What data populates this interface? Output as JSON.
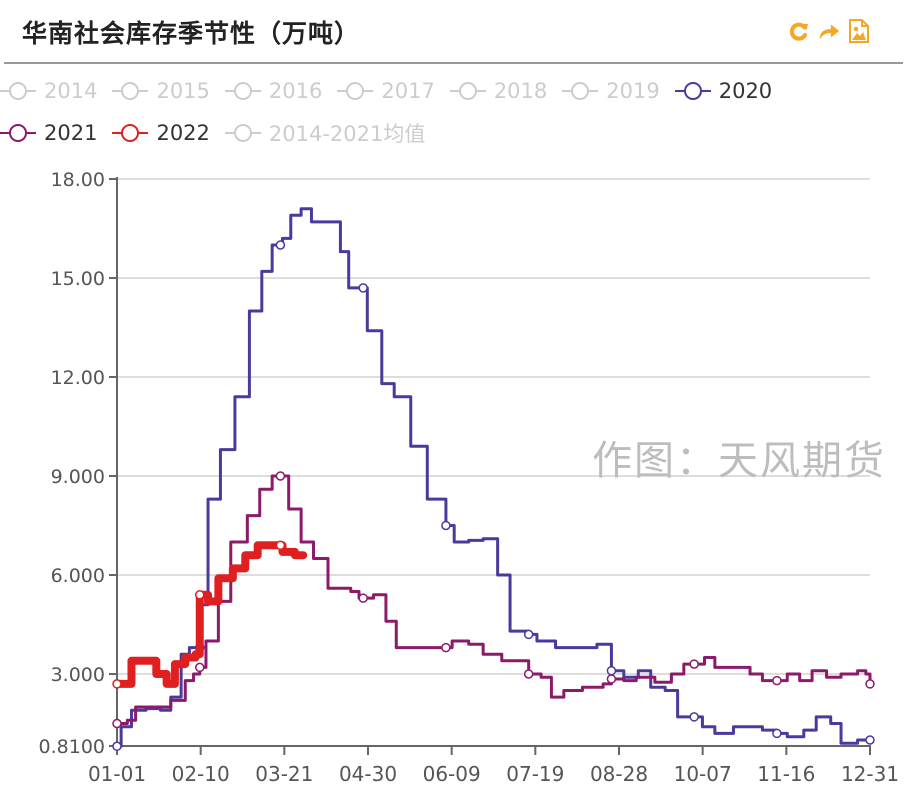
{
  "header": {
    "title": "华南社会库存季节性（万吨）",
    "tools": [
      {
        "name": "refresh-icon",
        "color": "#f5a623"
      },
      {
        "name": "share-icon",
        "color": "#f5a623"
      },
      {
        "name": "save-image-icon",
        "color": "#f5a623"
      }
    ]
  },
  "legend": {
    "rows": [
      [
        {
          "label": "2014",
          "active": false,
          "color": "#cccccc"
        },
        {
          "label": "2015",
          "active": false,
          "color": "#cccccc"
        },
        {
          "label": "2016",
          "active": false,
          "color": "#cccccc"
        },
        {
          "label": "2017",
          "active": false,
          "color": "#cccccc"
        },
        {
          "label": "2018",
          "active": false,
          "color": "#cccccc"
        },
        {
          "label": "2019",
          "active": false,
          "color": "#cccccc"
        },
        {
          "label": "2020",
          "active": true,
          "color": "#4b3a9c"
        }
      ],
      [
        {
          "label": "2021",
          "active": true,
          "color": "#8b1a6b"
        },
        {
          "label": "2022",
          "active": true,
          "color": "#e02020"
        },
        {
          "label": "2014-2021均值",
          "active": false,
          "color": "#cccccc"
        }
      ]
    ]
  },
  "watermark": "作图：天风期货",
  "chart_data": {
    "type": "line",
    "title": "华南社会库存季节性（万吨）",
    "xlabel": "",
    "ylabel": "",
    "ylim": [
      0.81,
      18.0
    ],
    "y_ticks": [
      "0.8100",
      "3.000",
      "6.000",
      "9.000",
      "12.00",
      "15.00",
      "18.00"
    ],
    "y_tick_values": [
      0.81,
      3.0,
      6.0,
      9.0,
      12.0,
      15.0,
      18.0
    ],
    "x_ticks": [
      "01-01",
      "02-10",
      "03-21",
      "04-30",
      "06-09",
      "07-19",
      "08-28",
      "10-07",
      "11-16",
      "12-31"
    ],
    "x_tick_days": [
      0,
      40,
      79,
      119,
      159,
      199,
      239,
      279,
      319,
      364
    ],
    "grid": true,
    "legend_position": "top",
    "step": true,
    "series": [
      {
        "name": "2020",
        "color": "#4b3a9c",
        "width": 3,
        "points": [
          [
            0,
            0.81
          ],
          [
            2,
            1.4
          ],
          [
            7,
            1.9
          ],
          [
            14,
            1.95
          ],
          [
            21,
            1.9
          ],
          [
            26,
            2.3
          ],
          [
            31,
            3.6
          ],
          [
            35,
            3.8
          ],
          [
            41,
            5.1
          ],
          [
            44,
            8.3
          ],
          [
            50,
            9.8
          ],
          [
            57,
            11.4
          ],
          [
            64,
            14.0
          ],
          [
            70,
            15.2
          ],
          [
            75,
            16.0
          ],
          [
            80,
            16.2
          ],
          [
            84,
            16.9
          ],
          [
            89,
            17.1
          ],
          [
            94,
            16.7
          ],
          [
            108,
            15.8
          ],
          [
            112,
            14.7
          ],
          [
            119,
            14.7
          ],
          [
            121,
            13.4
          ],
          [
            128,
            11.8
          ],
          [
            134,
            11.4
          ],
          [
            142,
            9.9
          ],
          [
            150,
            8.3
          ],
          [
            159,
            7.5
          ],
          [
            163,
            7.0
          ],
          [
            170,
            7.05
          ],
          [
            177,
            7.1
          ],
          [
            184,
            6.0
          ],
          [
            190,
            4.3
          ],
          [
            199,
            4.2
          ],
          [
            203,
            4.0
          ],
          [
            212,
            3.8
          ],
          [
            222,
            3.8
          ],
          [
            232,
            3.9
          ],
          [
            239,
            3.1
          ],
          [
            245,
            2.9
          ],
          [
            252,
            3.1
          ],
          [
            258,
            2.6
          ],
          [
            265,
            2.5
          ],
          [
            271,
            1.7
          ],
          [
            279,
            1.7
          ],
          [
            283,
            1.4
          ],
          [
            289,
            1.2
          ],
          [
            298,
            1.4
          ],
          [
            312,
            1.3
          ],
          [
            319,
            1.2
          ],
          [
            324,
            1.1
          ],
          [
            332,
            1.3
          ],
          [
            338,
            1.7
          ],
          [
            345,
            1.5
          ],
          [
            350,
            0.9
          ],
          [
            358,
            1.0
          ],
          [
            364,
            1.0
          ]
        ]
      },
      {
        "name": "2021",
        "color": "#8b1a6b",
        "width": 3,
        "points": [
          [
            0,
            1.5
          ],
          [
            5,
            1.6
          ],
          [
            9,
            2.0
          ],
          [
            14,
            2.0
          ],
          [
            20,
            2.0
          ],
          [
            26,
            2.2
          ],
          [
            33,
            2.8
          ],
          [
            37,
            3.0
          ],
          [
            40,
            3.2
          ],
          [
            43,
            4.0
          ],
          [
            49,
            5.2
          ],
          [
            55,
            7.0
          ],
          [
            63,
            7.8
          ],
          [
            69,
            8.6
          ],
          [
            75,
            9.0
          ],
          [
            79,
            9.0
          ],
          [
            83,
            8.0
          ],
          [
            89,
            7.0
          ],
          [
            95,
            6.5
          ],
          [
            102,
            5.6
          ],
          [
            113,
            5.5
          ],
          [
            117,
            5.3
          ],
          [
            124,
            5.4
          ],
          [
            130,
            4.6
          ],
          [
            135,
            3.8
          ],
          [
            144,
            3.8
          ],
          [
            155,
            3.8
          ],
          [
            162,
            4.0
          ],
          [
            170,
            3.9
          ],
          [
            177,
            3.6
          ],
          [
            186,
            3.4
          ],
          [
            199,
            3.0
          ],
          [
            205,
            2.9
          ],
          [
            210,
            2.3
          ],
          [
            216,
            2.5
          ],
          [
            225,
            2.6
          ],
          [
            235,
            2.7
          ],
          [
            239,
            2.85
          ],
          [
            245,
            2.8
          ],
          [
            251,
            2.9
          ],
          [
            260,
            2.75
          ],
          [
            268,
            3.0
          ],
          [
            274,
            3.3
          ],
          [
            279,
            3.3
          ],
          [
            284,
            3.5
          ],
          [
            289,
            3.2
          ],
          [
            298,
            3.2
          ],
          [
            306,
            3.0
          ],
          [
            312,
            2.8
          ],
          [
            319,
            2.8
          ],
          [
            324,
            3.0
          ],
          [
            330,
            2.8
          ],
          [
            336,
            3.1
          ],
          [
            343,
            2.9
          ],
          [
            350,
            3.0
          ],
          [
            358,
            3.1
          ],
          [
            362,
            3.0
          ],
          [
            364,
            2.7
          ]
        ]
      },
      {
        "name": "2022",
        "color": "#e02020",
        "width": 8,
        "points": [
          [
            0,
            2.7
          ],
          [
            5,
            2.7
          ],
          [
            7,
            3.4
          ],
          [
            15,
            3.4
          ],
          [
            19,
            3.0
          ],
          [
            24,
            2.7
          ],
          [
            28,
            3.3
          ],
          [
            33,
            3.5
          ],
          [
            38,
            3.6
          ],
          [
            40,
            5.4
          ],
          [
            44,
            5.2
          ],
          [
            49,
            5.9
          ],
          [
            56,
            6.2
          ],
          [
            62,
            6.6
          ],
          [
            68,
            6.9
          ],
          [
            76,
            6.9
          ],
          [
            80,
            6.7
          ],
          [
            86,
            6.6
          ],
          [
            90,
            6.6
          ]
        ]
      }
    ]
  }
}
